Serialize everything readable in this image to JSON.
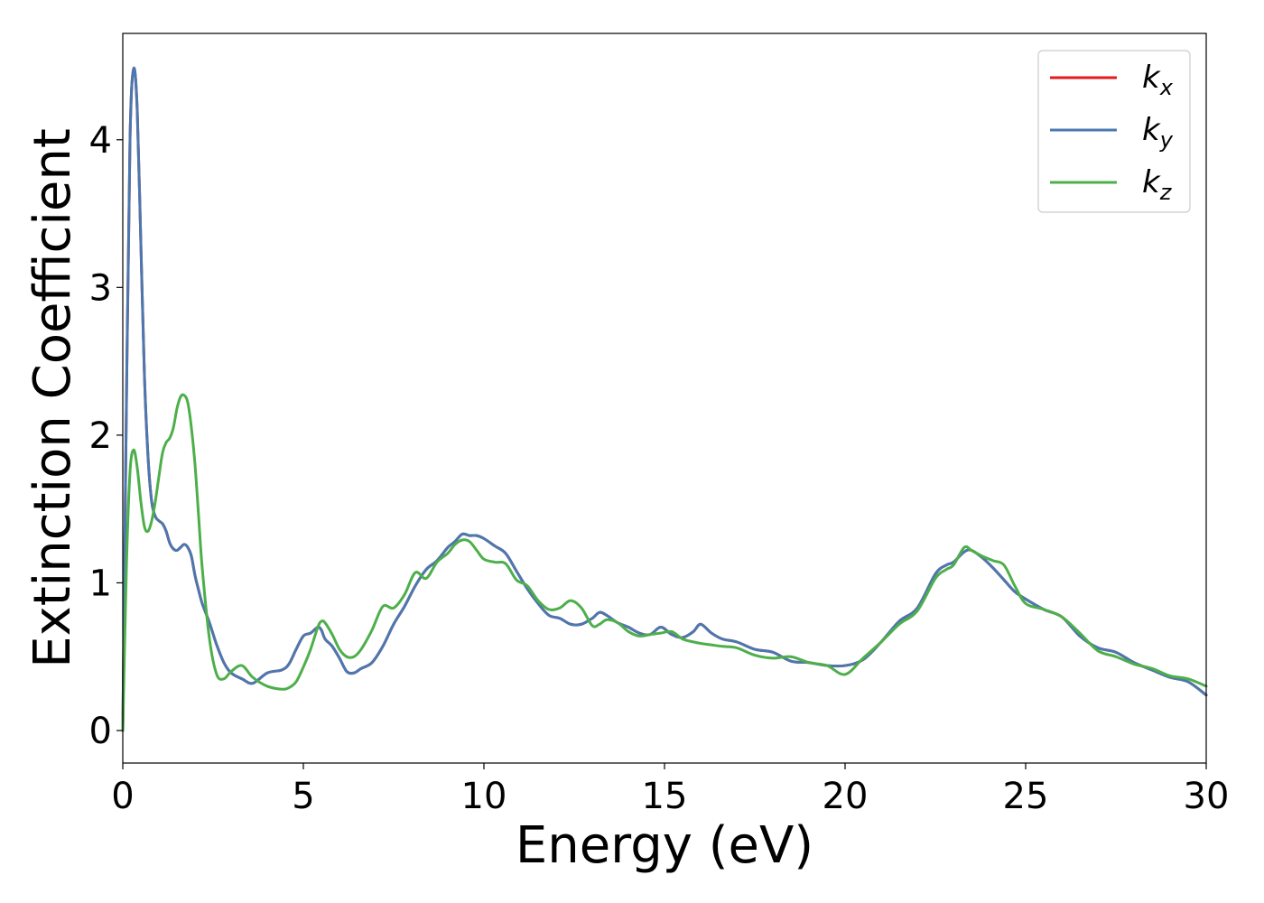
{
  "chart_data": {
    "type": "line",
    "title": "",
    "xlabel": "Energy (eV)",
    "ylabel": "Extinction Coefficient",
    "xlim": [
      0,
      30
    ],
    "ylim": [
      -0.22,
      4.72
    ],
    "xticks": [
      0,
      5,
      10,
      15,
      20,
      25,
      30
    ],
    "yticks": [
      0,
      1,
      2,
      3,
      4
    ],
    "grid": false,
    "legend_position": "top-right",
    "series": [
      {
        "name": "k_x",
        "legend_base": "k",
        "legend_sub": "x",
        "color": "#e41a1c",
        "x": [
          0,
          0.1,
          0.2,
          0.3,
          0.4,
          0.5,
          0.6,
          0.7,
          0.8,
          0.9,
          1.0,
          1.1,
          1.2,
          1.3,
          1.4,
          1.5,
          1.6,
          1.7,
          1.8,
          1.9,
          2.0,
          2.1,
          2.2,
          2.4,
          2.6,
          2.8,
          3.0,
          3.3,
          3.6,
          4.0,
          4.4,
          4.6,
          4.8,
          5.0,
          5.2,
          5.4,
          5.5,
          5.6,
          5.8,
          6.0,
          6.2,
          6.4,
          6.6,
          6.9,
          7.2,
          7.5,
          7.8,
          8.1,
          8.4,
          8.7,
          9.0,
          9.2,
          9.4,
          9.6,
          9.8,
          10.0,
          10.3,
          10.6,
          10.9,
          11.2,
          11.5,
          11.8,
          12.1,
          12.4,
          12.7,
          13.0,
          13.2,
          13.4,
          13.7,
          14.0,
          14.3,
          14.6,
          14.9,
          15.2,
          15.5,
          15.8,
          16.0,
          16.3,
          16.6,
          17.0,
          17.5,
          18.0,
          18.5,
          19.0,
          19.5,
          20.0,
          20.5,
          21.0,
          21.5,
          22.0,
          22.5,
          22.8,
          23.0,
          23.3,
          23.5,
          23.8,
          24.1,
          24.4,
          24.7,
          25.0,
          25.5,
          26.0,
          26.5,
          27.0,
          27.5,
          28.0,
          28.5,
          29.0,
          29.5,
          30.0
        ],
        "y": [
          0.0,
          2.2,
          4.0,
          4.48,
          4.2,
          3.3,
          2.4,
          1.85,
          1.55,
          1.45,
          1.42,
          1.4,
          1.35,
          1.27,
          1.23,
          1.22,
          1.24,
          1.26,
          1.24,
          1.18,
          1.05,
          0.95,
          0.86,
          0.73,
          0.58,
          0.46,
          0.39,
          0.35,
          0.32,
          0.39,
          0.41,
          0.45,
          0.55,
          0.64,
          0.66,
          0.7,
          0.68,
          0.62,
          0.57,
          0.49,
          0.4,
          0.39,
          0.42,
          0.46,
          0.57,
          0.72,
          0.84,
          0.98,
          1.09,
          1.15,
          1.24,
          1.28,
          1.33,
          1.32,
          1.32,
          1.3,
          1.25,
          1.2,
          1.08,
          0.96,
          0.86,
          0.78,
          0.76,
          0.72,
          0.72,
          0.76,
          0.8,
          0.78,
          0.73,
          0.7,
          0.66,
          0.65,
          0.7,
          0.65,
          0.63,
          0.67,
          0.72,
          0.66,
          0.62,
          0.6,
          0.55,
          0.53,
          0.47,
          0.46,
          0.44,
          0.44,
          0.48,
          0.6,
          0.74,
          0.83,
          1.06,
          1.12,
          1.14,
          1.21,
          1.22,
          1.17,
          1.1,
          1.02,
          0.94,
          0.89,
          0.82,
          0.77,
          0.64,
          0.56,
          0.53,
          0.46,
          0.41,
          0.36,
          0.33,
          0.24
        ]
      },
      {
        "name": "k_y",
        "legend_base": "k",
        "legend_sub": "y",
        "color": "#4a78b0",
        "x": [
          0,
          0.1,
          0.2,
          0.3,
          0.4,
          0.5,
          0.6,
          0.7,
          0.8,
          0.9,
          1.0,
          1.1,
          1.2,
          1.3,
          1.4,
          1.5,
          1.6,
          1.7,
          1.8,
          1.9,
          2.0,
          2.1,
          2.2,
          2.4,
          2.6,
          2.8,
          3.0,
          3.3,
          3.6,
          4.0,
          4.4,
          4.6,
          4.8,
          5.0,
          5.2,
          5.4,
          5.5,
          5.6,
          5.8,
          6.0,
          6.2,
          6.4,
          6.6,
          6.9,
          7.2,
          7.5,
          7.8,
          8.1,
          8.4,
          8.7,
          9.0,
          9.2,
          9.4,
          9.6,
          9.8,
          10.0,
          10.3,
          10.6,
          10.9,
          11.2,
          11.5,
          11.8,
          12.1,
          12.4,
          12.7,
          13.0,
          13.2,
          13.4,
          13.7,
          14.0,
          14.3,
          14.6,
          14.9,
          15.2,
          15.5,
          15.8,
          16.0,
          16.3,
          16.6,
          17.0,
          17.5,
          18.0,
          18.5,
          19.0,
          19.5,
          20.0,
          20.5,
          21.0,
          21.5,
          22.0,
          22.5,
          22.8,
          23.0,
          23.3,
          23.5,
          23.8,
          24.1,
          24.4,
          24.7,
          25.0,
          25.5,
          26.0,
          26.5,
          27.0,
          27.5,
          28.0,
          28.5,
          29.0,
          29.5,
          30.0
        ],
        "y": [
          0.0,
          2.2,
          4.0,
          4.48,
          4.2,
          3.3,
          2.4,
          1.85,
          1.55,
          1.45,
          1.42,
          1.4,
          1.35,
          1.27,
          1.23,
          1.22,
          1.24,
          1.26,
          1.24,
          1.18,
          1.05,
          0.95,
          0.86,
          0.73,
          0.58,
          0.46,
          0.39,
          0.35,
          0.32,
          0.39,
          0.41,
          0.45,
          0.55,
          0.64,
          0.66,
          0.7,
          0.68,
          0.62,
          0.57,
          0.49,
          0.4,
          0.39,
          0.42,
          0.46,
          0.57,
          0.72,
          0.84,
          0.98,
          1.09,
          1.15,
          1.24,
          1.28,
          1.33,
          1.32,
          1.32,
          1.3,
          1.25,
          1.2,
          1.08,
          0.96,
          0.86,
          0.78,
          0.76,
          0.72,
          0.72,
          0.76,
          0.8,
          0.78,
          0.73,
          0.7,
          0.66,
          0.65,
          0.7,
          0.65,
          0.63,
          0.67,
          0.72,
          0.66,
          0.62,
          0.6,
          0.55,
          0.53,
          0.47,
          0.46,
          0.44,
          0.44,
          0.48,
          0.6,
          0.74,
          0.83,
          1.06,
          1.12,
          1.14,
          1.21,
          1.22,
          1.17,
          1.1,
          1.02,
          0.94,
          0.89,
          0.82,
          0.77,
          0.64,
          0.56,
          0.53,
          0.46,
          0.41,
          0.36,
          0.33,
          0.24
        ]
      },
      {
        "name": "k_z",
        "legend_base": "k",
        "legend_sub": "z",
        "color": "#4daf4a",
        "x": [
          0,
          0.1,
          0.2,
          0.3,
          0.4,
          0.5,
          0.6,
          0.7,
          0.8,
          0.9,
          1.0,
          1.1,
          1.2,
          1.3,
          1.4,
          1.5,
          1.6,
          1.7,
          1.8,
          1.9,
          2.0,
          2.1,
          2.2,
          2.4,
          2.6,
          2.8,
          3.0,
          3.3,
          3.6,
          4.0,
          4.4,
          4.6,
          4.8,
          5.0,
          5.2,
          5.4,
          5.5,
          5.6,
          5.8,
          6.0,
          6.2,
          6.4,
          6.6,
          6.9,
          7.2,
          7.5,
          7.8,
          8.1,
          8.4,
          8.7,
          9.0,
          9.2,
          9.4,
          9.6,
          9.8,
          10.0,
          10.3,
          10.6,
          10.9,
          11.2,
          11.5,
          11.8,
          12.1,
          12.4,
          12.7,
          13.0,
          13.2,
          13.4,
          13.7,
          14.0,
          14.3,
          14.6,
          14.9,
          15.2,
          15.5,
          15.8,
          16.0,
          16.3,
          16.6,
          17.0,
          17.5,
          18.0,
          18.5,
          19.0,
          19.5,
          20.0,
          20.5,
          21.0,
          21.5,
          22.0,
          22.5,
          22.8,
          23.0,
          23.3,
          23.5,
          23.8,
          24.1,
          24.4,
          24.7,
          25.0,
          25.5,
          26.0,
          26.5,
          27.0,
          27.5,
          28.0,
          28.5,
          29.0,
          29.5,
          30.0
        ],
        "y": [
          0.0,
          1.1,
          1.75,
          1.9,
          1.78,
          1.55,
          1.38,
          1.35,
          1.42,
          1.55,
          1.72,
          1.88,
          1.95,
          1.98,
          2.05,
          2.18,
          2.26,
          2.27,
          2.22,
          2.05,
          1.8,
          1.45,
          1.1,
          0.62,
          0.38,
          0.35,
          0.4,
          0.44,
          0.36,
          0.3,
          0.28,
          0.29,
          0.33,
          0.43,
          0.55,
          0.7,
          0.74,
          0.73,
          0.65,
          0.55,
          0.5,
          0.5,
          0.55,
          0.68,
          0.84,
          0.83,
          0.92,
          1.07,
          1.03,
          1.14,
          1.2,
          1.26,
          1.29,
          1.28,
          1.22,
          1.16,
          1.14,
          1.13,
          1.02,
          0.98,
          0.88,
          0.82,
          0.83,
          0.88,
          0.83,
          0.71,
          0.72,
          0.75,
          0.73,
          0.67,
          0.64,
          0.65,
          0.66,
          0.67,
          0.62,
          0.6,
          0.59,
          0.58,
          0.57,
          0.56,
          0.51,
          0.49,
          0.5,
          0.46,
          0.44,
          0.38,
          0.49,
          0.6,
          0.72,
          0.81,
          1.03,
          1.09,
          1.12,
          1.24,
          1.22,
          1.18,
          1.15,
          1.12,
          0.98,
          0.86,
          0.82,
          0.77,
          0.66,
          0.54,
          0.5,
          0.45,
          0.42,
          0.37,
          0.35,
          0.3
        ]
      }
    ]
  }
}
